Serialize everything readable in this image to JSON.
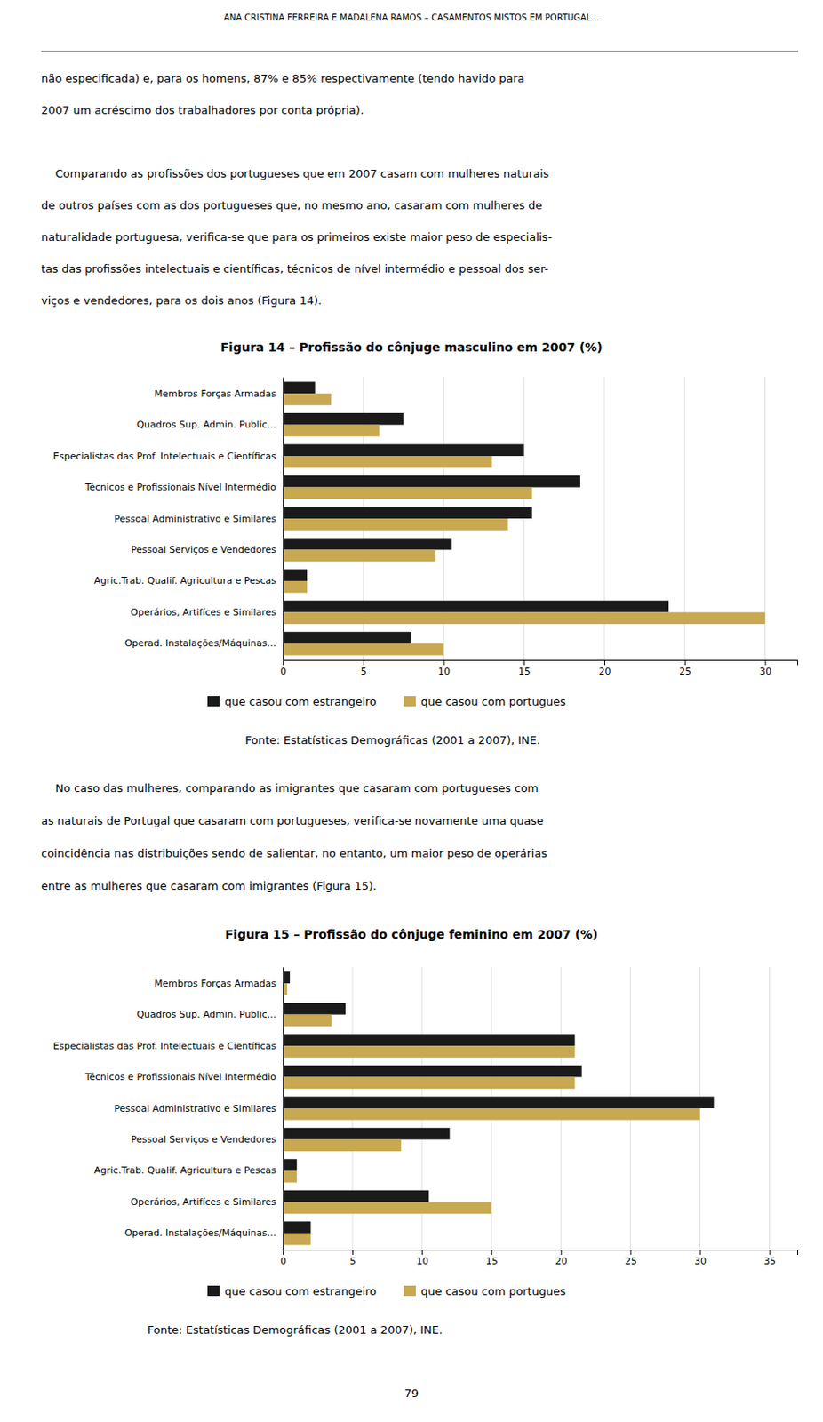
{
  "header": "ANA CRISTINA FERREIRA E MADALENA RAMOS – CASAMENTOS MISTOS EM PORTUGAL...",
  "paragraphs_before_fig14": [
    [
      "não especificada) e, para os homens, 87% e 85% respectivamente (tendo havido para",
      "2007 um acréscimo dos trabalhadores por conta própria)."
    ],
    [
      "    Comparando as profissões dos portugueses que em 2007 casam com mulheres naturais",
      "de outros países com as dos portugueses que, no mesmo ano, casaram com mulheres de",
      "naturalidade portuguesa, verifica-se que para os primeiros existe maior peso de especialis-",
      "tas das profissões intelectuais e científicas, técnicos de nível intermédio e pessoal dos ser-",
      "viços e vendedores, para os dois anos (Figura 14)."
    ]
  ],
  "paragraphs_before_fig15": [
    [
      "    No caso das mulheres, comparando as imigrantes que casaram com portugueses com",
      "as naturais de Portugal que casaram com portugueses, verifica-se novamente uma quase",
      "coincidência nas distribuições sendo de salientar, no entanto, um maior peso de operárias",
      "entre as mulheres que casaram com imigrantes (Figura 15)."
    ]
  ],
  "page_number": "79",
  "chart_data": [
    {
      "type": "bar",
      "orientation": "horizontal",
      "title": "Figura 14 – Profissão do cônjuge masculino em 2007 (%)",
      "categories": [
        "Membros Forças Armadas",
        "Quadros Sup. Admin. Public...",
        "Especialistas das Prof. Intelectuais e Científicas",
        "Técnicos e Profissionais Nível Intermédio",
        "Pessoal Administrativo e Similares",
        "Pessoal Serviços e Vendedores",
        "Agric.Trab. Qualif. Agricultura e Pescas",
        "Operários, Artifíces e Similares",
        "Operad. Instalações/Máquinas..."
      ],
      "series": [
        {
          "name": "que casou com estrangeiro",
          "color": "#1a1a1a",
          "values": [
            2.0,
            7.5,
            15.0,
            18.5,
            15.5,
            10.5,
            1.5,
            24.0,
            8.0
          ]
        },
        {
          "name": "que casou com portugues",
          "color": "#c8a850",
          "values": [
            3.0,
            6.0,
            13.0,
            15.5,
            14.0,
            9.5,
            1.5,
            30.0,
            10.0
          ]
        }
      ],
      "xlim": [
        0,
        32
      ],
      "xticks": [
        0,
        5,
        10,
        15,
        20,
        25,
        30
      ],
      "grid": true,
      "legend": "bottom",
      "source": "Fonte: Estatísticas Demográficas (2001 a 2007), INE."
    },
    {
      "type": "bar",
      "orientation": "horizontal",
      "title": "Figura 15 – Profissão do cônjuge feminino em 2007 (%)",
      "categories": [
        "Membros Forças Armadas",
        "Quadros Sup. Admin. Public...",
        "Especialistas das Prof. Intelectuais e Científicas",
        "Técnicos e Profissionais Nível Intermédio",
        "Pessoal Administrativo e Similares",
        "Pessoal Serviços e Vendedores",
        "Agric.Trab. Qualif. Agricultura e Pescas",
        "Operários, Artifíces e Similares",
        "Operad. Instalações/Máquinas..."
      ],
      "series": [
        {
          "name": "que casou com estrangeiro",
          "color": "#1a1a1a",
          "values": [
            0.5,
            4.5,
            21.0,
            21.5,
            31.0,
            12.0,
            1.0,
            10.5,
            2.0
          ]
        },
        {
          "name": "que casou com portugues",
          "color": "#c8a850",
          "values": [
            0.3,
            3.5,
            21.0,
            21.0,
            30.0,
            8.5,
            1.0,
            15.0,
            2.0
          ]
        }
      ],
      "xlim": [
        0,
        37
      ],
      "xticks": [
        0,
        5,
        10,
        15,
        20,
        25,
        30,
        35
      ],
      "grid": true,
      "legend": "bottom",
      "source": "Fonte: Estatísticas Demográficas (2001 a 2007), INE."
    }
  ]
}
